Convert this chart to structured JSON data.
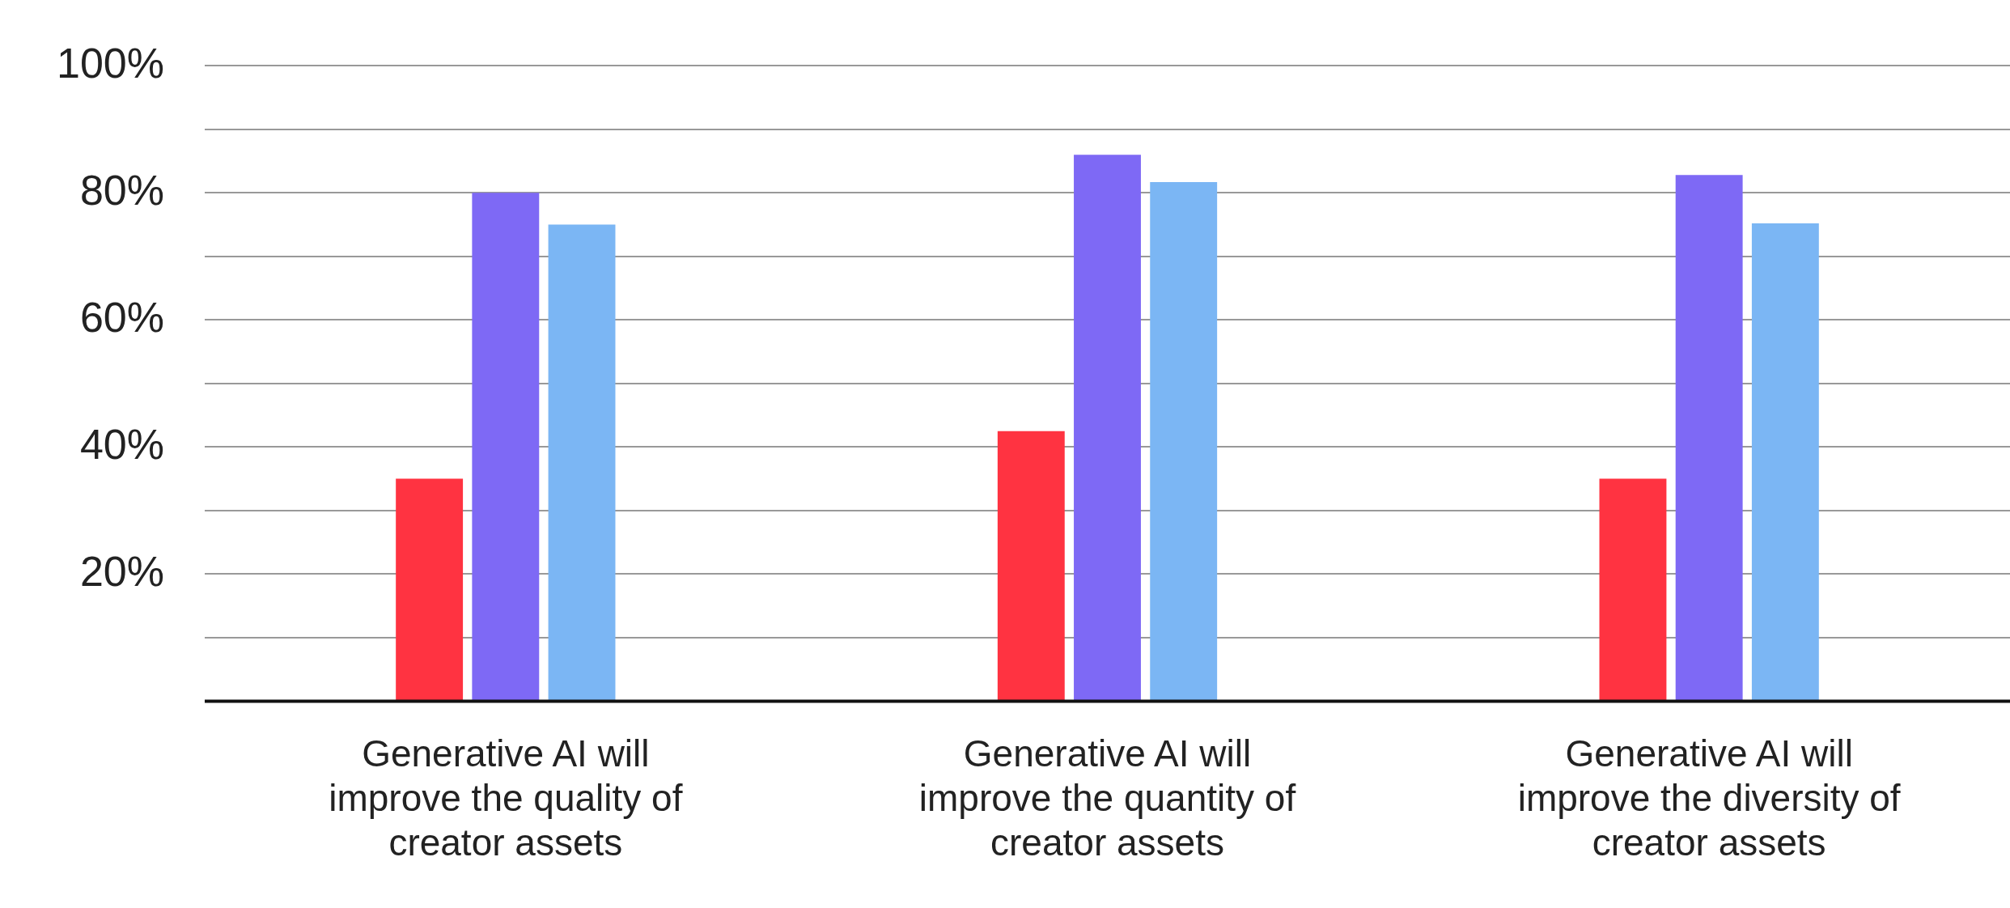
{
  "chart_data": {
    "type": "bar",
    "categories": [
      "Generative AI will improve the quality of creator assets",
      "Generative AI will improve the quantity of creator assets",
      "Generative AI will improve the diversity of creator assets"
    ],
    "series": [
      {
        "color": "#ff3341",
        "values": [
          35,
          42.5,
          35
        ]
      },
      {
        "color": "#7e69f5",
        "values": [
          80,
          86,
          82.8
        ]
      },
      {
        "color": "#7bb6f4",
        "values": [
          75,
          81.7,
          75.2
        ]
      }
    ],
    "ylim": [
      0,
      100
    ],
    "yticks": [
      {
        "value": 0,
        "label": null
      },
      {
        "value": 10,
        "label": null
      },
      {
        "value": 20,
        "label": "20%"
      },
      {
        "value": 30,
        "label": null
      },
      {
        "value": 40,
        "label": "40%"
      },
      {
        "value": 50,
        "label": null
      },
      {
        "value": 60,
        "label": "60%"
      },
      {
        "value": 70,
        "label": null
      },
      {
        "value": 80,
        "label": "80%"
      },
      {
        "value": 90,
        "label": null
      },
      {
        "value": 100,
        "label": "100%"
      }
    ],
    "grid": "y",
    "legend": false
  }
}
